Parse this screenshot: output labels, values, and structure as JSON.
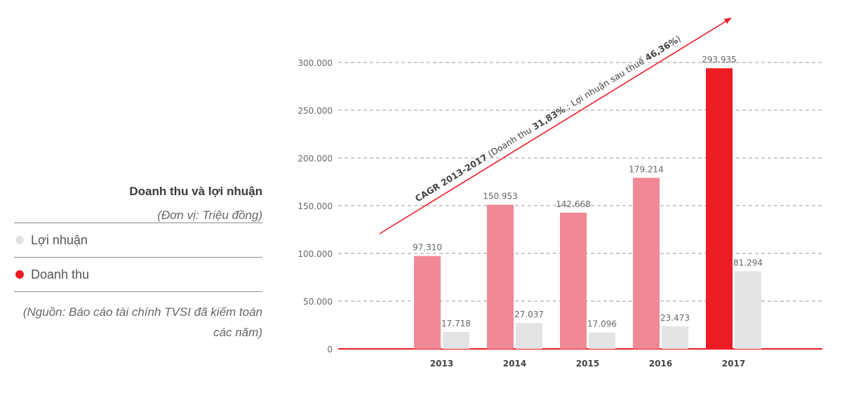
{
  "panel": {
    "title": "Doanh thu và lợi nhuận",
    "unit": "(Đơn vị: Triệu đồng)",
    "legend": [
      {
        "label": "Lợi nhuận",
        "color": "#e2e4e3"
      },
      {
        "label": "Doanh thu",
        "color": "#ed1c24"
      }
    ],
    "source": "(Nguồn: Báo cáo tài chính TVSI đã kiếm toán các năm)"
  },
  "chart_data": {
    "type": "bar",
    "categories": [
      "2013",
      "2014",
      "2015",
      "2016",
      "2017"
    ],
    "series": [
      {
        "name": "Doanh thu",
        "values": [
          97310,
          150953,
          142668,
          179214,
          293935
        ],
        "labels": [
          "97.310",
          "150.953",
          "142.668",
          "179.214",
          "293.935"
        ],
        "colors": [
          "#f08895",
          "#f08895",
          "#f08895",
          "#f08895",
          "#ed1c24"
        ]
      },
      {
        "name": "Lợi nhuận",
        "values": [
          17718,
          27037,
          17096,
          23473,
          81294
        ],
        "labels": [
          "17.718",
          "27.037",
          "17.096",
          "23.473",
          "81.294"
        ],
        "colors": [
          "#e2e4e3",
          "#e2e4e3",
          "#e2e4e3",
          "#e2e4e3",
          "#e2e4e3"
        ]
      }
    ],
    "ylim": [
      0,
      300000
    ],
    "yticks": [
      0,
      50000,
      100000,
      150000,
      200000,
      250000,
      300000
    ],
    "ytick_labels": [
      "0",
      "50.000",
      "100.000",
      "150.000",
      "200.000",
      "250.000",
      "300.000"
    ],
    "grid": true,
    "annotation": {
      "prefix": "CAGR 2013-2017",
      "revenue_text": " (Doanh thu ",
      "revenue_value": "31,83%",
      "profit_text": " ; Lợi nhuận sau thuế ",
      "profit_value": "46,36%",
      "suffix": ")",
      "color": "#ed1c24"
    }
  }
}
